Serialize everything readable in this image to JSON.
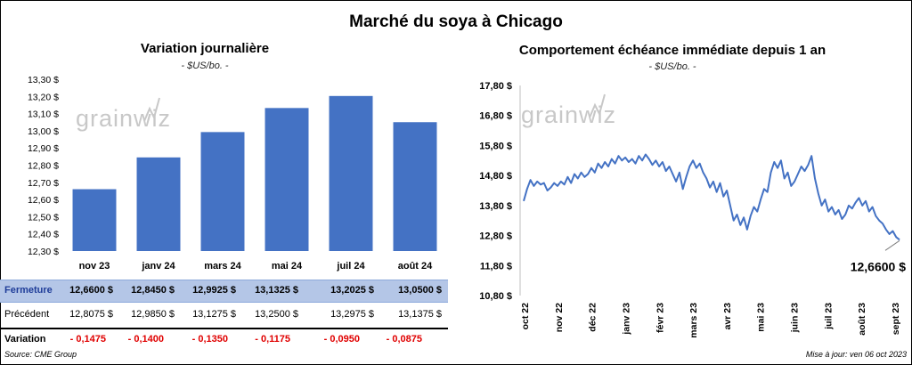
{
  "title": "Marché du soya à Chicago",
  "left_panel": {
    "title": "Variation journalière",
    "subtitle": "- $US/bo. -"
  },
  "right_panel": {
    "title": "Comportement échéance immédiate depuis 1 an",
    "subtitle": "- $US/bo. -",
    "last_value_label": "12,6600 $"
  },
  "watermark": "grainwiz",
  "table": {
    "rows": [
      {
        "label": "Fermeture",
        "values": [
          "12,6600 $",
          "12,8450 $",
          "12,9925 $",
          "13,1325 $",
          "13,2025 $",
          "13,0500 $"
        ]
      },
      {
        "label": "Précédent",
        "values": [
          "12,8075 $",
          "12,9850 $",
          "13,1275 $",
          "13,2500 $",
          "13,2975 $",
          "13,1375 $"
        ]
      },
      {
        "label": "Variation",
        "values": [
          "- 0,1475",
          "- 0,1400",
          "- 0,1350",
          "- 0,1175",
          "- 0,0950",
          "- 0,0875"
        ]
      }
    ]
  },
  "footer": {
    "source": "Source: CME Group",
    "updated": "Mise à jour: ven 06 oct 2023"
  },
  "colors": {
    "bar": "#4472c4",
    "line": "#4472c4",
    "table_highlight": "#b4c6e7",
    "negative": "#e00000"
  },
  "chart_data": [
    {
      "type": "bar",
      "categories": [
        "nov 23",
        "janv 24",
        "mars 24",
        "mai 24",
        "juil 24",
        "août 24"
      ],
      "values": [
        12.66,
        12.845,
        12.9925,
        13.1325,
        13.2025,
        13.05
      ],
      "title": "Variation journalière",
      "ylim": [
        12.3,
        13.3
      ],
      "yticks": [
        "12,30 $",
        "12,40 $",
        "12,50 $",
        "12,60 $",
        "12,70 $",
        "12,80 $",
        "12,90 $",
        "13,00 $",
        "13,10 $",
        "13,20 $",
        "13,30 $"
      ],
      "grid": false
    },
    {
      "type": "line",
      "title": "Comportement échéance immédiate depuis 1 an",
      "ylim": [
        10.8,
        17.8
      ],
      "yticks": [
        "10,80 $",
        "11,80 $",
        "12,80 $",
        "13,80 $",
        "14,80 $",
        "15,80 $",
        "16,80 $",
        "17,80 $"
      ],
      "xticks": [
        "oct 22",
        "nov 22",
        "déc 22",
        "janv 23",
        "févr 23",
        "mars 23",
        "avr 23",
        "mai 23",
        "juin 23",
        "juil 23",
        "août 23",
        "sept 23"
      ],
      "grid": false,
      "values": [
        13.95,
        14.35,
        14.65,
        14.45,
        14.6,
        14.5,
        14.55,
        14.3,
        14.4,
        14.55,
        14.45,
        14.6,
        14.5,
        14.75,
        14.55,
        14.85,
        14.7,
        14.9,
        14.75,
        14.85,
        15.05,
        14.9,
        15.2,
        15.05,
        15.25,
        15.1,
        15.35,
        15.2,
        15.45,
        15.3,
        15.4,
        15.25,
        15.35,
        15.2,
        15.45,
        15.3,
        15.5,
        15.35,
        15.15,
        15.3,
        15.1,
        15.25,
        14.95,
        15.1,
        14.85,
        14.6,
        14.9,
        14.35,
        14.75,
        15.1,
        15.3,
        15.05,
        15.2,
        14.9,
        14.7,
        14.4,
        14.6,
        14.25,
        14.55,
        14.1,
        14.3,
        13.8,
        13.3,
        13.5,
        13.15,
        13.4,
        13.0,
        13.45,
        13.75,
        13.6,
        14.0,
        14.35,
        14.25,
        14.9,
        15.25,
        15.05,
        15.3,
        14.7,
        14.9,
        14.45,
        14.6,
        14.85,
        15.1,
        14.95,
        15.15,
        15.45,
        14.7,
        14.2,
        13.8,
        14.0,
        13.6,
        13.75,
        13.5,
        13.65,
        13.35,
        13.5,
        13.8,
        13.7,
        13.9,
        14.05,
        13.8,
        13.95,
        13.6,
        13.75,
        13.45,
        13.3,
        13.2,
        13.0,
        12.85,
        12.95,
        12.75,
        12.66
      ]
    }
  ]
}
